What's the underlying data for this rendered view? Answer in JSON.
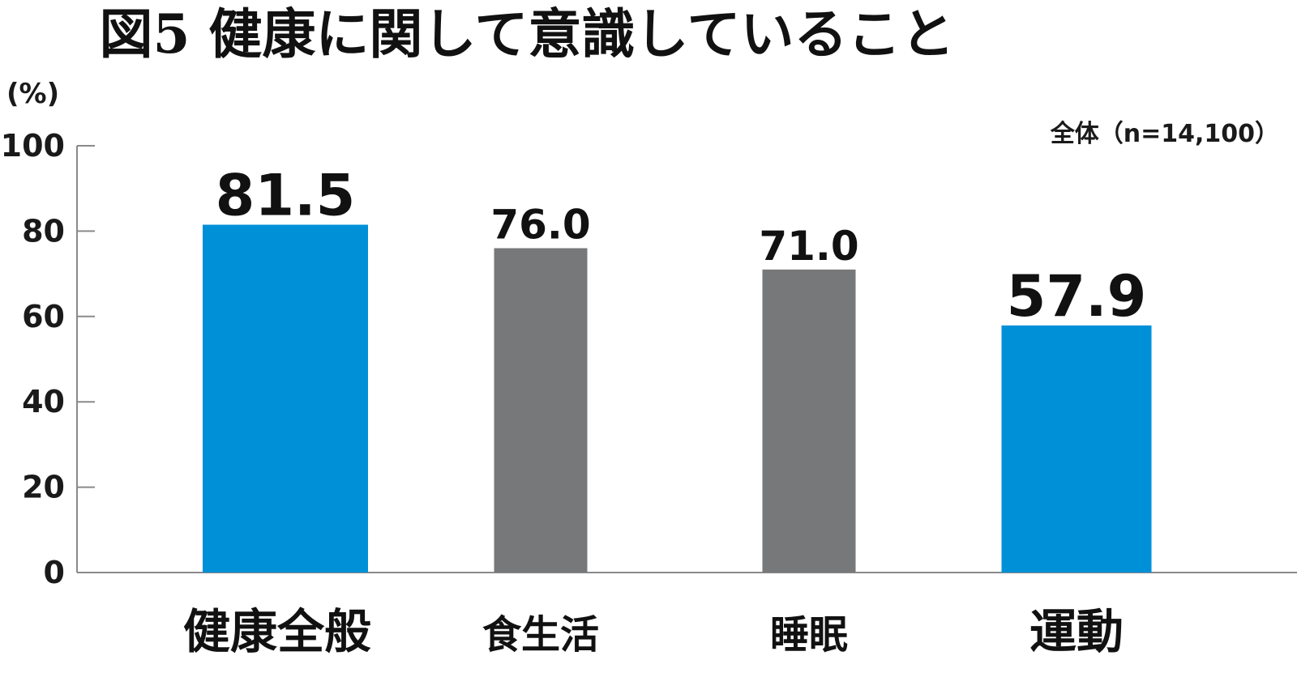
{
  "chart_data": {
    "type": "bar",
    "title": "図5 健康に関して意識していること",
    "unit_label": "(%)",
    "sample_note": "全体（n=14,100）",
    "categories": [
      "健康全般",
      "食生活",
      "睡眠",
      "運動"
    ],
    "values": [
      81.5,
      76.0,
      71.0,
      57.9
    ],
    "value_labels": [
      "81.5",
      "76.0",
      "71.0",
      "57.9"
    ],
    "bar_colors": [
      "#0090d8",
      "#777879",
      "#777879",
      "#0090d8"
    ],
    "highlighted": [
      true,
      false,
      false,
      true
    ],
    "ylim": [
      0,
      100
    ],
    "yticks": [
      0,
      20,
      40,
      60,
      80,
      100
    ],
    "ytick_labels": [
      "0",
      "20",
      "40",
      "60",
      "80",
      "100"
    ],
    "grid": false,
    "legend": "none"
  },
  "colors": {
    "highlight": "#0090d8",
    "normal": "#777879",
    "axis": "#8a8a8a"
  }
}
